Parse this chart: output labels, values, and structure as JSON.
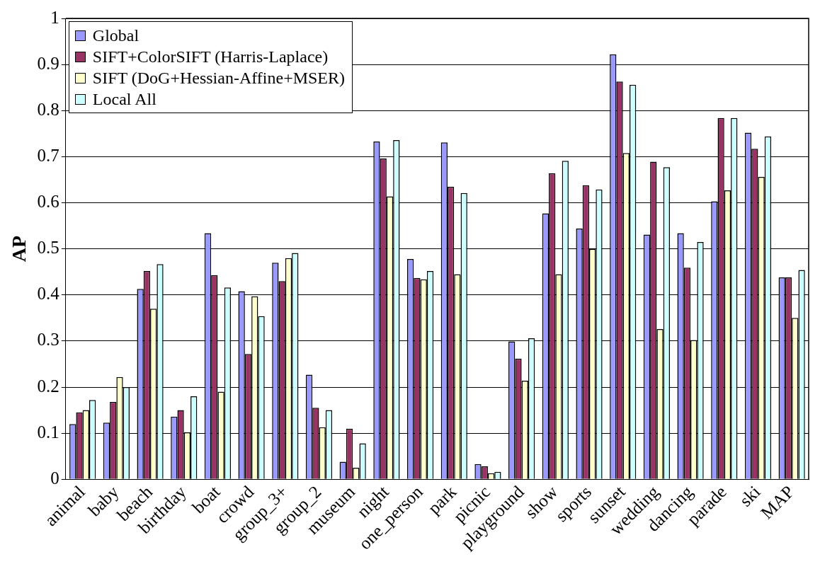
{
  "chart_data": {
    "type": "bar",
    "ylabel": "AP",
    "categories": [
      "animal",
      "baby",
      "beach",
      "birthday",
      "boat",
      "crowd",
      "group_3+",
      "group_2",
      "museum",
      "night",
      "one_person",
      "park",
      "picnic",
      "playground",
      "show",
      "sports",
      "sunset",
      "wedding",
      "dancing",
      "parade",
      "ski",
      "MAP"
    ],
    "series": [
      {
        "name": "Global",
        "color": "#9999ff",
        "values": [
          0.12,
          0.123,
          0.413,
          0.136,
          0.534,
          0.408,
          0.47,
          0.227,
          0.038,
          0.733,
          0.478,
          0.731,
          0.033,
          0.299,
          0.577,
          0.544,
          0.922,
          0.531,
          0.534,
          0.603,
          0.752,
          0.438
        ]
      },
      {
        "name": "SIFT+ColorSIFT (Harris-Laplace)",
        "color": "#993366",
        "values": [
          0.145,
          0.168,
          0.452,
          0.15,
          0.443,
          0.272,
          0.43,
          0.155,
          0.11,
          0.696,
          0.437,
          0.635,
          0.028,
          0.262,
          0.664,
          0.638,
          0.863,
          0.689,
          0.459,
          0.784,
          0.717,
          0.438
        ]
      },
      {
        "name": "SIFT (DoG+Hessian-Affine+MSER)",
        "color": "#ffffcc",
        "values": [
          0.15,
          0.222,
          0.37,
          0.102,
          0.19,
          0.397,
          0.48,
          0.113,
          0.025,
          0.614,
          0.434,
          0.445,
          0.013,
          0.214,
          0.445,
          0.5,
          0.708,
          0.326,
          0.302,
          0.627,
          0.656,
          0.35
        ]
      },
      {
        "name": "Local All",
        "color": "#ccffff",
        "values": [
          0.172,
          0.2,
          0.467,
          0.18,
          0.416,
          0.354,
          0.491,
          0.15,
          0.078,
          0.736,
          0.452,
          0.621,
          0.016,
          0.306,
          0.691,
          0.629,
          0.856,
          0.677,
          0.515,
          0.784,
          0.744,
          0.454
        ]
      }
    ],
    "ylim": [
      0,
      1
    ],
    "yticks": [
      0,
      0.1,
      0.2,
      0.3,
      0.4,
      0.5,
      0.6,
      0.7,
      0.8,
      0.9,
      1
    ],
    "grid": "y",
    "legend": "top left"
  }
}
